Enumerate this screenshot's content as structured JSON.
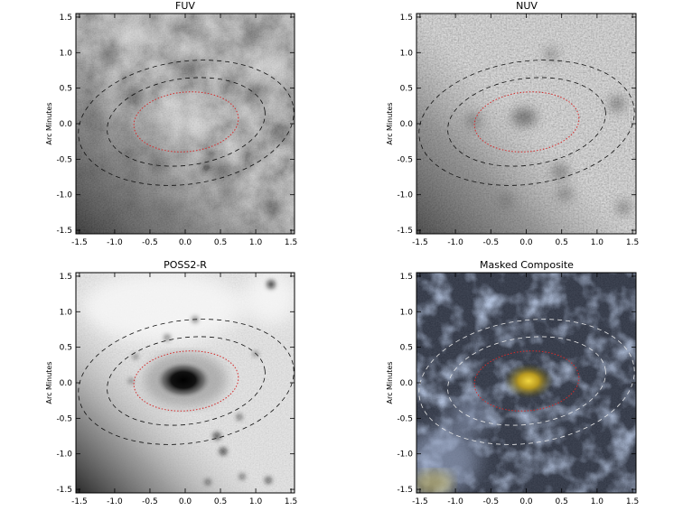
{
  "figure": {
    "panels": [
      {
        "title": "FUV",
        "y_label": "Arc Minutes",
        "style": "gray-fuv"
      },
      {
        "title": "NUV",
        "y_label": "Arc Minutes",
        "style": "gray-nuv"
      },
      {
        "title": "POSS2-R",
        "y_label": "Arc Minutes",
        "style": "gray-optical"
      },
      {
        "title": "Masked Composite",
        "y_label": "Arc Minutes",
        "style": "color-composite"
      }
    ],
    "x_ticks": [
      "-1.5",
      "-1.0",
      "-0.5",
      "0.0",
      "0.5",
      "1.0",
      "1.5"
    ],
    "y_ticks": [
      "1.5",
      "1.0",
      "0.5",
      "0.0",
      "-0.5",
      "-1.0",
      "-1.5"
    ],
    "axis_range_arcmin": [
      -1.55,
      1.55
    ],
    "ellipse_colors": {
      "inner": "#d42a2a",
      "outer_gray_panels": "#111111",
      "outer_composite": "#e8e8e8"
    }
  }
}
